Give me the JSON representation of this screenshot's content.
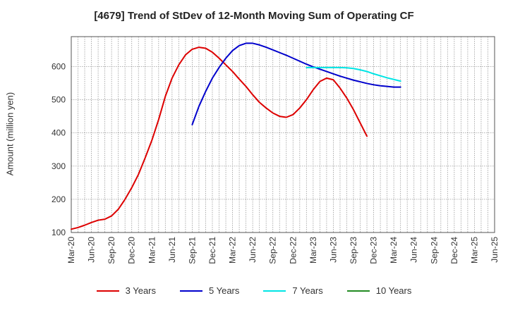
{
  "chart_data": {
    "type": "line",
    "title": "[4679]  Trend of StDev of 12-Month Moving Sum of Operating CF",
    "xlabel": "",
    "ylabel": "Amount (million yen)",
    "ylim": [
      100,
      690
    ],
    "yticks": [
      100,
      200,
      300,
      400,
      500,
      600
    ],
    "x_tick_labels": [
      "Mar-20",
      "Jun-20",
      "Sep-20",
      "Dec-20",
      "Mar-21",
      "Jun-21",
      "Sep-21",
      "Dec-21",
      "Mar-22",
      "Jun-22",
      "Sep-22",
      "Dec-22",
      "Mar-23",
      "Jun-23",
      "Sep-23",
      "Dec-23",
      "Mar-24",
      "Jun-24",
      "Sep-24",
      "Dec-24",
      "Mar-25",
      "Jun-25"
    ],
    "grid": true,
    "legend_position": "bottom",
    "series": [
      {
        "name": "3 Years",
        "color": "#dd0000",
        "start_index": 0,
        "values": [
          110,
          115,
          122,
          130,
          137,
          140,
          150,
          170,
          200,
          235,
          275,
          325,
          378,
          440,
          510,
          565,
          605,
          635,
          652,
          658,
          655,
          643,
          625,
          605,
          585,
          562,
          540,
          515,
          492,
          475,
          460,
          450,
          447,
          455,
          475,
          500,
          530,
          555,
          565,
          560,
          535,
          505,
          470,
          430,
          390
        ]
      },
      {
        "name": "5 Years",
        "color": "#0000cc",
        "start_index": 18,
        "values": [
          425,
          480,
          525,
          565,
          597,
          625,
          648,
          663,
          670,
          670,
          665,
          658,
          650,
          642,
          634,
          625,
          616,
          607,
          599,
          592,
          585,
          578,
          571,
          565,
          559,
          554,
          549,
          545,
          542,
          540,
          538,
          538
        ]
      },
      {
        "name": "7 Years",
        "color": "#00e5e5",
        "start_index": 35,
        "values": [
          597,
          597,
          597,
          597,
          597,
          597,
          596,
          594,
          590,
          585,
          578,
          572,
          566,
          561,
          556
        ]
      },
      {
        "name": "10 Years",
        "color": "#228b22",
        "start_index": 0,
        "values": []
      }
    ]
  }
}
